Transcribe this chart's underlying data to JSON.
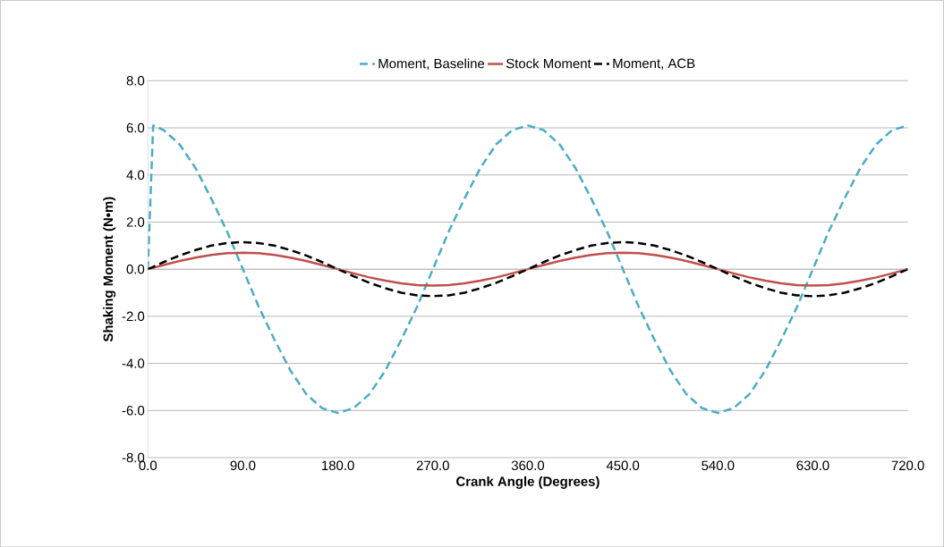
{
  "chart_data": {
    "type": "line",
    "xlabel": "Crank Angle (Degrees)",
    "ylabel": "Shaking Moment (N•m)",
    "x": [
      0,
      5,
      15,
      30,
      45,
      60,
      75,
      90,
      105,
      120,
      135,
      150,
      165,
      180,
      195,
      210,
      225,
      240,
      255,
      270,
      285,
      300,
      315,
      330,
      345,
      360,
      375,
      390,
      405,
      420,
      435,
      450,
      465,
      480,
      495,
      510,
      525,
      540,
      555,
      570,
      585,
      600,
      615,
      630,
      645,
      660,
      675,
      690,
      705,
      720
    ],
    "series": [
      {
        "name": "Moment, Baseline",
        "color": "#4bacc6",
        "line_style": "dashed",
        "values": [
          0,
          6.1,
          5.9,
          5.3,
          4.3,
          3.0,
          1.6,
          0.0,
          -1.6,
          -3.0,
          -4.3,
          -5.3,
          -5.9,
          -6.1,
          -5.9,
          -5.3,
          -4.3,
          -3.0,
          -1.6,
          0.0,
          1.6,
          3.0,
          4.3,
          5.3,
          5.9,
          6.1,
          5.9,
          5.3,
          4.3,
          3.0,
          1.6,
          0.0,
          -1.6,
          -3.0,
          -4.3,
          -5.3,
          -5.9,
          -6.1,
          -5.9,
          -5.3,
          -4.3,
          -3.0,
          -1.6,
          0.0,
          1.6,
          3.0,
          4.3,
          5.3,
          5.9,
          6.1
        ]
      },
      {
        "name": "Stock Moment",
        "color": "#c0504d",
        "line_style": "solid",
        "values": [
          0,
          0.06,
          0.18,
          0.35,
          0.49,
          0.6,
          0.68,
          0.7,
          0.68,
          0.6,
          0.49,
          0.35,
          0.18,
          0,
          -0.18,
          -0.35,
          -0.49,
          -0.6,
          -0.68,
          -0.7,
          -0.68,
          -0.6,
          -0.49,
          -0.35,
          -0.18,
          0,
          0.18,
          0.35,
          0.49,
          0.6,
          0.68,
          0.7,
          0.68,
          0.6,
          0.49,
          0.35,
          0.18,
          0,
          -0.18,
          -0.35,
          -0.49,
          -0.6,
          -0.68,
          -0.7,
          -0.68,
          -0.6,
          -0.49,
          -0.35,
          -0.18,
          0
        ]
      },
      {
        "name": "Moment, ACB",
        "color": "#000000",
        "line_style": "dashed",
        "values": [
          0,
          0.1,
          0.3,
          0.58,
          0.81,
          1.0,
          1.11,
          1.15,
          1.11,
          1.0,
          0.81,
          0.58,
          0.3,
          0,
          -0.3,
          -0.58,
          -0.81,
          -1.0,
          -1.11,
          -1.15,
          -1.11,
          -1.0,
          -0.81,
          -0.58,
          -0.3,
          0,
          0.3,
          0.58,
          0.81,
          1.0,
          1.11,
          1.15,
          1.11,
          1.0,
          0.81,
          0.58,
          0.3,
          0,
          -0.3,
          -0.58,
          -0.81,
          -1.0,
          -1.11,
          -1.15,
          -1.11,
          -1.0,
          -0.81,
          -0.58,
          -0.3,
          0
        ]
      }
    ],
    "xlim": [
      0,
      720
    ],
    "ylim": [
      -8,
      8
    ],
    "xticks": [
      {
        "value": 0,
        "label": "0.0"
      },
      {
        "value": 90,
        "label": "90.0"
      },
      {
        "value": 180,
        "label": "180.0"
      },
      {
        "value": 270,
        "label": "270.0"
      },
      {
        "value": 360,
        "label": "360.0"
      },
      {
        "value": 450,
        "label": "450.0"
      },
      {
        "value": 540,
        "label": "540.0"
      },
      {
        "value": 630,
        "label": "630.0"
      },
      {
        "value": 720,
        "label": "720.0"
      }
    ],
    "yticks": [
      {
        "value": -8,
        "label": "-8.0"
      },
      {
        "value": -6,
        "label": "-6.0"
      },
      {
        "value": -4,
        "label": "-4.0"
      },
      {
        "value": -2,
        "label": "-2.0"
      },
      {
        "value": 0,
        "label": "0.0"
      },
      {
        "value": 2,
        "label": "2.0"
      },
      {
        "value": 4,
        "label": "4.0"
      },
      {
        "value": 6,
        "label": "6.0"
      },
      {
        "value": 8,
        "label": "8.0"
      }
    ],
    "grid": "y",
    "legend": "top",
    "marker": "none"
  }
}
